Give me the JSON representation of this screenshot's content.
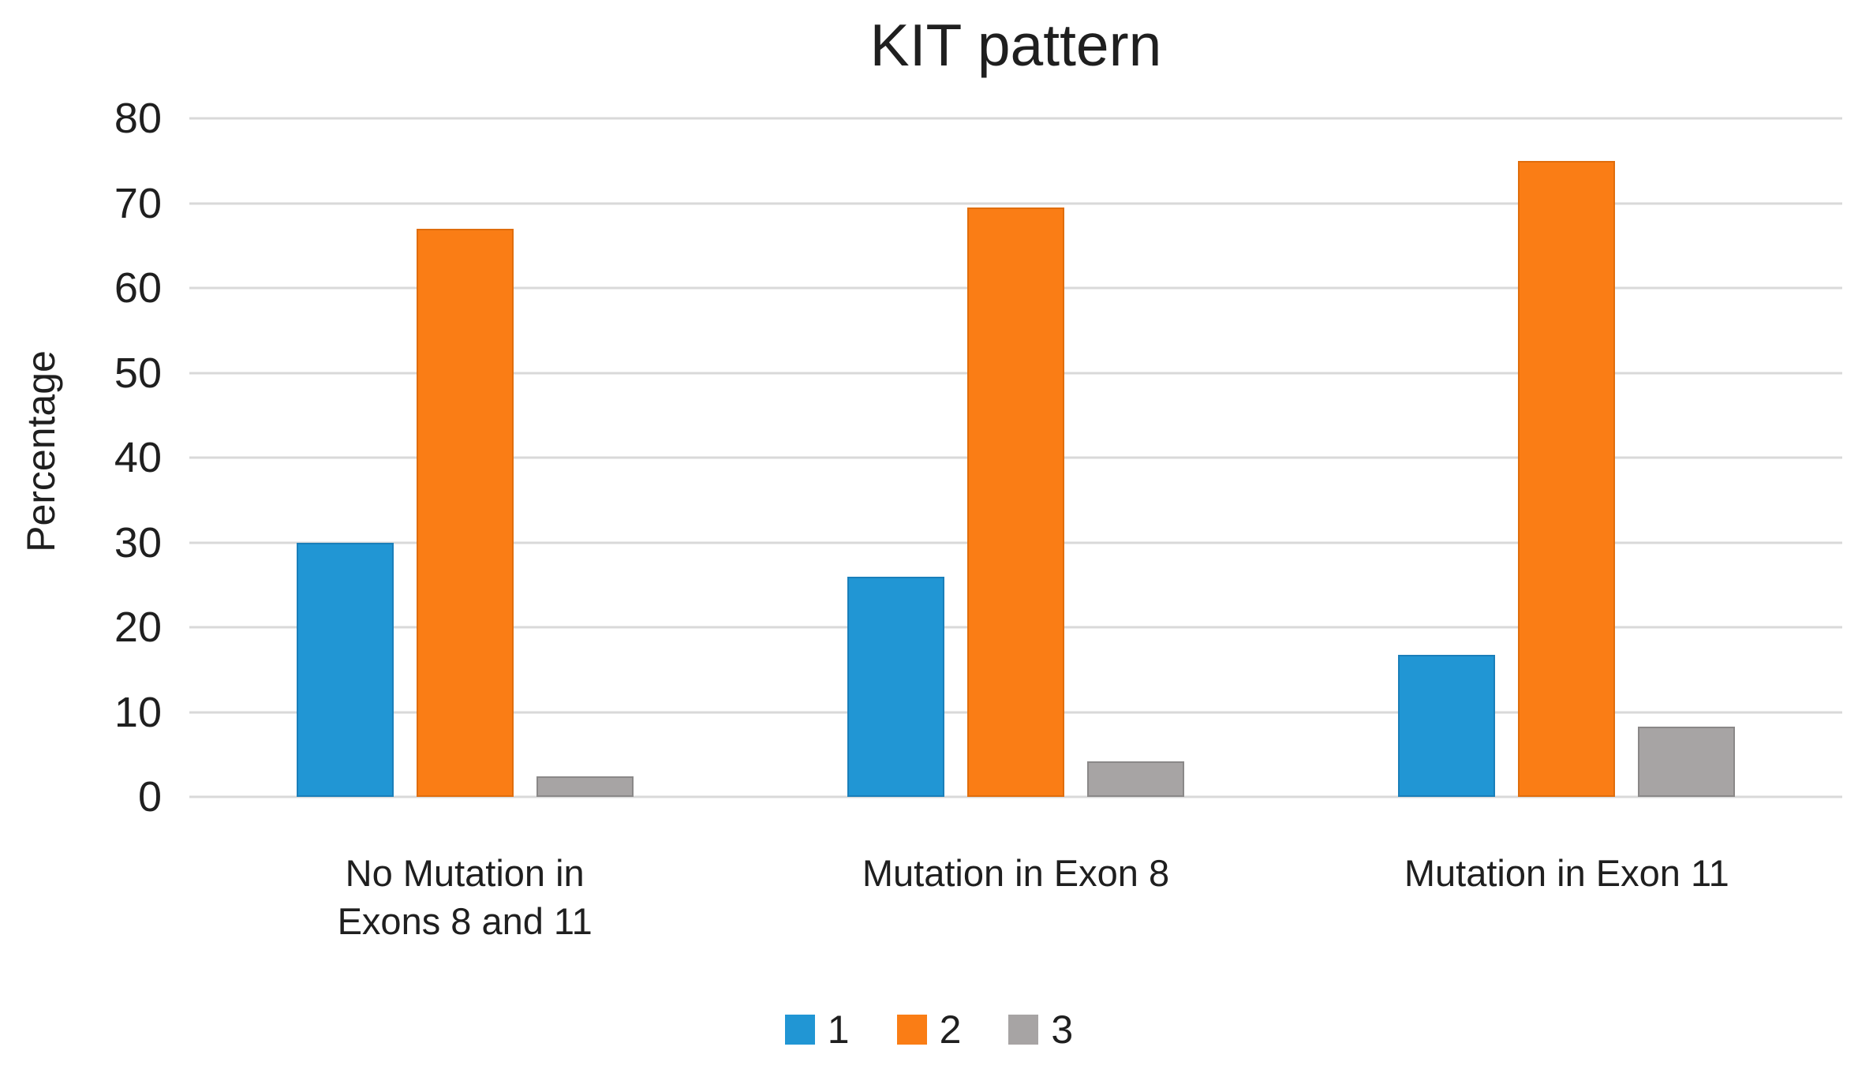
{
  "chart_data": {
    "type": "bar",
    "title": "KIT pattern",
    "xlabel": "",
    "ylabel": "Percentage",
    "ylim": [
      0,
      80
    ],
    "yticks": [
      0,
      10,
      20,
      30,
      40,
      50,
      60,
      70,
      80
    ],
    "grid": "horizontal",
    "gridline_color": "#d9d9d9",
    "legend_position": "bottom-center",
    "categories": [
      "No Mutation in\nExons 8 and 11",
      "Mutation in Exon 8",
      "Mutation in Exon 11"
    ],
    "series": [
      {
        "name": "1",
        "color": "#2196d4",
        "border_color": "#1a7fba",
        "values": [
          30,
          26,
          16.7
        ]
      },
      {
        "name": "2",
        "color": "#fa7d15",
        "border_color": "#e06d0c",
        "values": [
          67,
          69.5,
          75
        ]
      },
      {
        "name": "3",
        "color": "#a7a4a4",
        "border_color": "#8a8888",
        "values": [
          2.4,
          4.2,
          8.3
        ]
      }
    ]
  }
}
